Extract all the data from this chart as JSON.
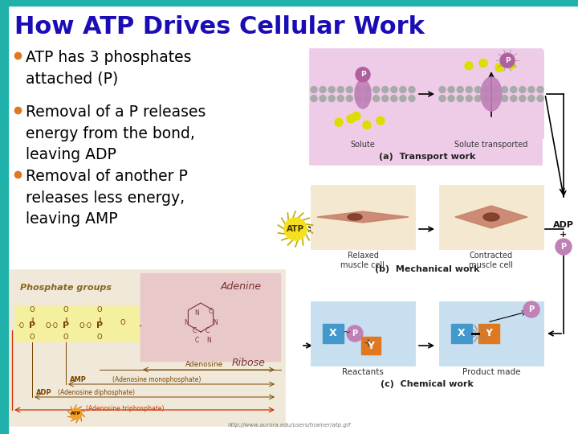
{
  "title": "How ATP Drives Cellular Work",
  "title_color": "#1a0db5",
  "title_fontsize": 22,
  "bg_color": "#ffffff",
  "header_bar_color": "#20b2aa",
  "left_bar_color": "#20b2aa",
  "bullet_color": "#e07820",
  "bullet_text_color": "#000000",
  "bullet_fontsize": 13.5,
  "bullets": [
    "ATP has 3 phosphates\nattached (P)",
    "Removal of a P releases\nenergy from the bond,\nleaving ADP",
    "Removal of another P\nreleases less energy,\nleaving AMP"
  ],
  "transport_bg": "#eecce8",
  "mechanical_bg": "#f5e8d0",
  "chemical_bg": "#c8dff0",
  "atp_struct_bg": "#f5f0dc",
  "atp_struct_pink": "#e8c8c8",
  "phosphate_yellow": "#f5f0a0",
  "source_url": "http://www.aurora.edu/users/tnamer/atp.gif"
}
